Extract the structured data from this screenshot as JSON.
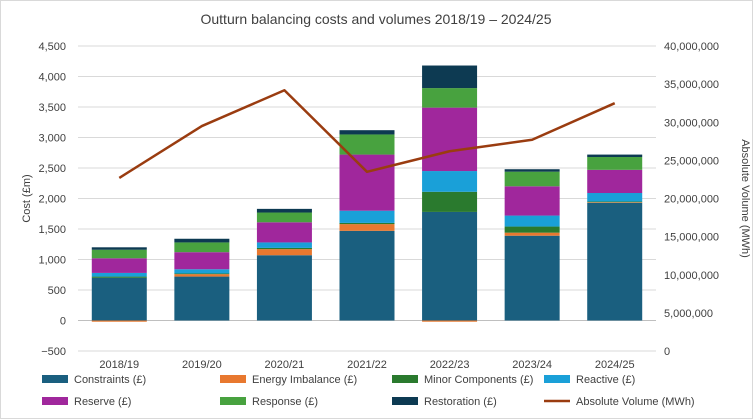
{
  "chart_data": {
    "type": "bar",
    "title": "Outturn balancing costs and volumes 2018/19 – 2024/25",
    "categories": [
      "2018/19",
      "2019/20",
      "2020/21",
      "2021/22",
      "2022/23",
      "2023/24",
      "2024/25"
    ],
    "ylabel": "Cost (£m)",
    "y2label": "Absolute Volume (MWh)",
    "ylim": [
      -500,
      4500
    ],
    "y2lim": [
      0,
      40000000
    ],
    "yticks": [
      "4,500",
      "4,000",
      "3,500",
      "3,000",
      "2,500",
      "2,000",
      "1,500",
      "1,000",
      "500",
      "0",
      "−500"
    ],
    "y2ticks": [
      "40,000,000",
      "35,000,000",
      "30,000,000",
      "25,000,000",
      "20,000,000",
      "15,000,000",
      "10,000,000",
      "5,000,000",
      "0"
    ],
    "series": [
      {
        "name": "Constraints (£)",
        "color": "#1a5f7f",
        "values": [
          700,
          720,
          1070,
          1470,
          1780,
          1390,
          1930
        ]
      },
      {
        "name": "Energy Imbalance (£)",
        "color": "#e8782f",
        "values": [
          -20,
          40,
          100,
          110,
          -20,
          50,
          10
        ]
      },
      {
        "name": "Minor Components (£)",
        "color": "#2a7a2e",
        "values": [
          20,
          10,
          20,
          20,
          330,
          100,
          10
        ]
      },
      {
        "name": "Reactive (£)",
        "color": "#1aa0d8",
        "values": [
          60,
          70,
          90,
          200,
          340,
          180,
          140
        ]
      },
      {
        "name": "Reserve (£)",
        "color": "#a0279c",
        "values": [
          240,
          280,
          330,
          920,
          1040,
          480,
          380
        ]
      },
      {
        "name": "Response (£)",
        "color": "#48a23f",
        "values": [
          140,
          160,
          160,
          330,
          320,
          240,
          210
        ]
      },
      {
        "name": "Restoration (£)",
        "color": "#0d3a52",
        "values": [
          40,
          60,
          60,
          70,
          370,
          40,
          40
        ]
      }
    ],
    "line_series": {
      "name": "Absolute Volume (MWh)",
      "color": "#9a3c10",
      "axis": "secondary",
      "values": [
        22700000,
        29500000,
        34200000,
        23500000,
        26200000,
        27700000,
        32500000
      ]
    },
    "legend_position": "bottom"
  }
}
